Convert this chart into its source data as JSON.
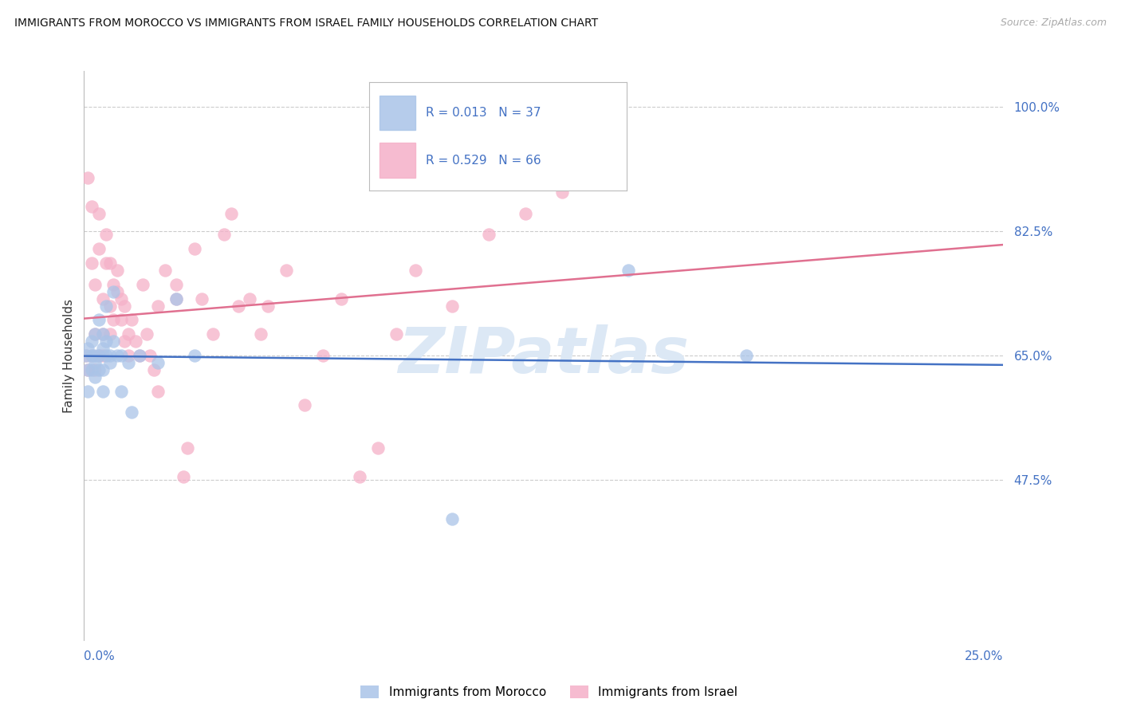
{
  "title": "IMMIGRANTS FROM MOROCCO VS IMMIGRANTS FROM ISRAEL FAMILY HOUSEHOLDS CORRELATION CHART",
  "source": "Source: ZipAtlas.com",
  "ylabel": "Family Households",
  "right_ytick_vals": [
    0.475,
    0.65,
    0.825,
    1.0
  ],
  "right_ytick_labels": [
    "47.5%",
    "65.0%",
    "82.5%",
    "100.0%"
  ],
  "morocco_color": "#aac4e8",
  "israel_color": "#f5b0c8",
  "morocco_line_color": "#4472c4",
  "israel_line_color": "#e07090",
  "legend_r_color": "#4472c4",
  "legend_n_color": "#4472c4",
  "watermark_color": "#dce8f5",
  "xlim": [
    0.0,
    0.25
  ],
  "ylim": [
    0.25,
    1.05
  ],
  "morocco_x": [
    0.0005,
    0.001,
    0.001,
    0.001,
    0.002,
    0.002,
    0.002,
    0.003,
    0.003,
    0.003,
    0.003,
    0.004,
    0.004,
    0.004,
    0.005,
    0.005,
    0.005,
    0.005,
    0.006,
    0.006,
    0.006,
    0.007,
    0.007,
    0.008,
    0.008,
    0.009,
    0.01,
    0.01,
    0.012,
    0.013,
    0.015,
    0.02,
    0.025,
    0.03,
    0.1,
    0.148,
    0.18
  ],
  "morocco_y": [
    0.65,
    0.66,
    0.63,
    0.6,
    0.67,
    0.65,
    0.63,
    0.64,
    0.62,
    0.68,
    0.65,
    0.7,
    0.65,
    0.63,
    0.66,
    0.63,
    0.6,
    0.68,
    0.67,
    0.65,
    0.72,
    0.64,
    0.65,
    0.67,
    0.74,
    0.65,
    0.6,
    0.65,
    0.64,
    0.57,
    0.65,
    0.64,
    0.73,
    0.65,
    0.42,
    0.77,
    0.65
  ],
  "israel_x": [
    0.0005,
    0.001,
    0.001,
    0.002,
    0.002,
    0.002,
    0.003,
    0.003,
    0.003,
    0.004,
    0.004,
    0.004,
    0.005,
    0.005,
    0.005,
    0.006,
    0.006,
    0.007,
    0.007,
    0.007,
    0.008,
    0.008,
    0.009,
    0.009,
    0.01,
    0.01,
    0.011,
    0.011,
    0.012,
    0.012,
    0.013,
    0.014,
    0.015,
    0.016,
    0.017,
    0.018,
    0.019,
    0.02,
    0.022,
    0.025,
    0.027,
    0.028,
    0.03,
    0.032,
    0.035,
    0.038,
    0.04,
    0.042,
    0.045,
    0.048,
    0.05,
    0.055,
    0.06,
    0.065,
    0.07,
    0.075,
    0.08,
    0.085,
    0.09,
    0.1,
    0.11,
    0.12,
    0.13,
    0.14,
    0.02,
    0.025
  ],
  "israel_y": [
    0.65,
    0.63,
    0.9,
    0.78,
    0.86,
    0.65,
    0.68,
    0.75,
    0.63,
    0.85,
    0.8,
    0.65,
    0.73,
    0.68,
    0.65,
    0.82,
    0.78,
    0.78,
    0.72,
    0.68,
    0.75,
    0.7,
    0.77,
    0.74,
    0.73,
    0.7,
    0.72,
    0.67,
    0.68,
    0.65,
    0.7,
    0.67,
    0.65,
    0.75,
    0.68,
    0.65,
    0.63,
    0.72,
    0.77,
    0.73,
    0.48,
    0.52,
    0.8,
    0.73,
    0.68,
    0.82,
    0.85,
    0.72,
    0.73,
    0.68,
    0.72,
    0.77,
    0.58,
    0.65,
    0.73,
    0.48,
    0.52,
    0.68,
    0.77,
    0.72,
    0.82,
    0.85,
    0.88,
    0.9,
    0.6,
    0.75
  ]
}
